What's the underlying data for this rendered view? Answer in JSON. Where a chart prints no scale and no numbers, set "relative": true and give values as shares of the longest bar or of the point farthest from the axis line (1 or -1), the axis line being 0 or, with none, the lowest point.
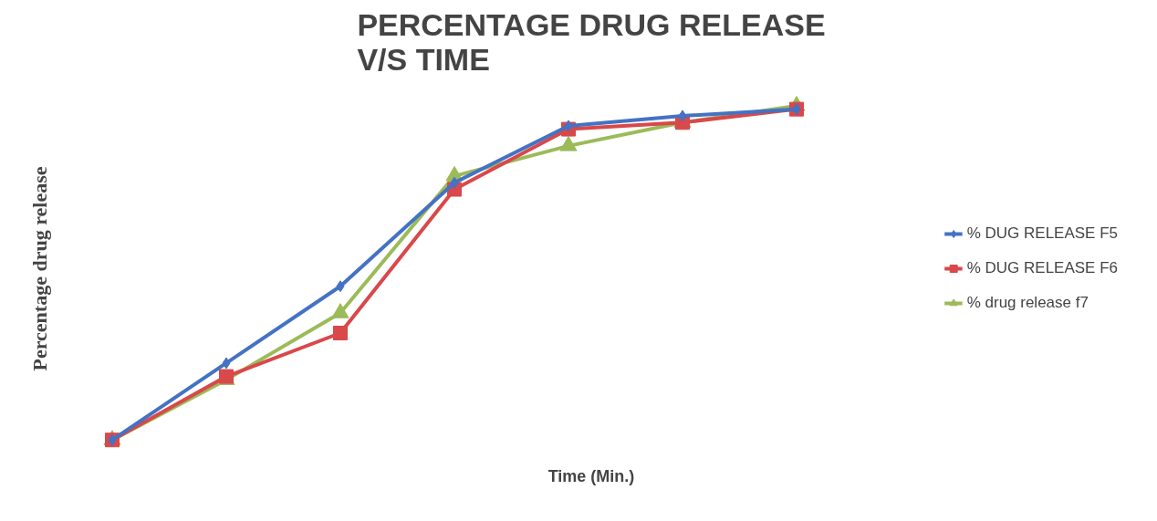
{
  "chart_data": {
    "type": "line",
    "title": "PERCENTAGE DRUG RELEASE\nV/S TIME",
    "xlabel": "Time (Min.)",
    "ylabel": "Percentage drug release",
    "relative": true,
    "categories": [
      null,
      null,
      null,
      null,
      null,
      null,
      null
    ],
    "grid": false,
    "legend": "right",
    "line_style": "solid",
    "series": [
      {
        "name": "% DUG RELEASE F5",
        "color": "#4472c4",
        "marker": "diamond",
        "values": [
          0,
          0.23,
          0.46,
          0.77,
          0.94,
          0.97,
          0.99
        ]
      },
      {
        "name": "% DUG RELEASE F6",
        "color": "#d9484a",
        "marker": "square",
        "values": [
          0,
          0.19,
          0.32,
          0.75,
          0.93,
          0.95,
          0.99
        ]
      },
      {
        "name": "% drug release f7",
        "color": "#9bbb59",
        "marker": "triangle",
        "values": [
          0,
          0.18,
          0.38,
          0.79,
          0.88,
          0.95,
          1.0
        ]
      }
    ]
  }
}
